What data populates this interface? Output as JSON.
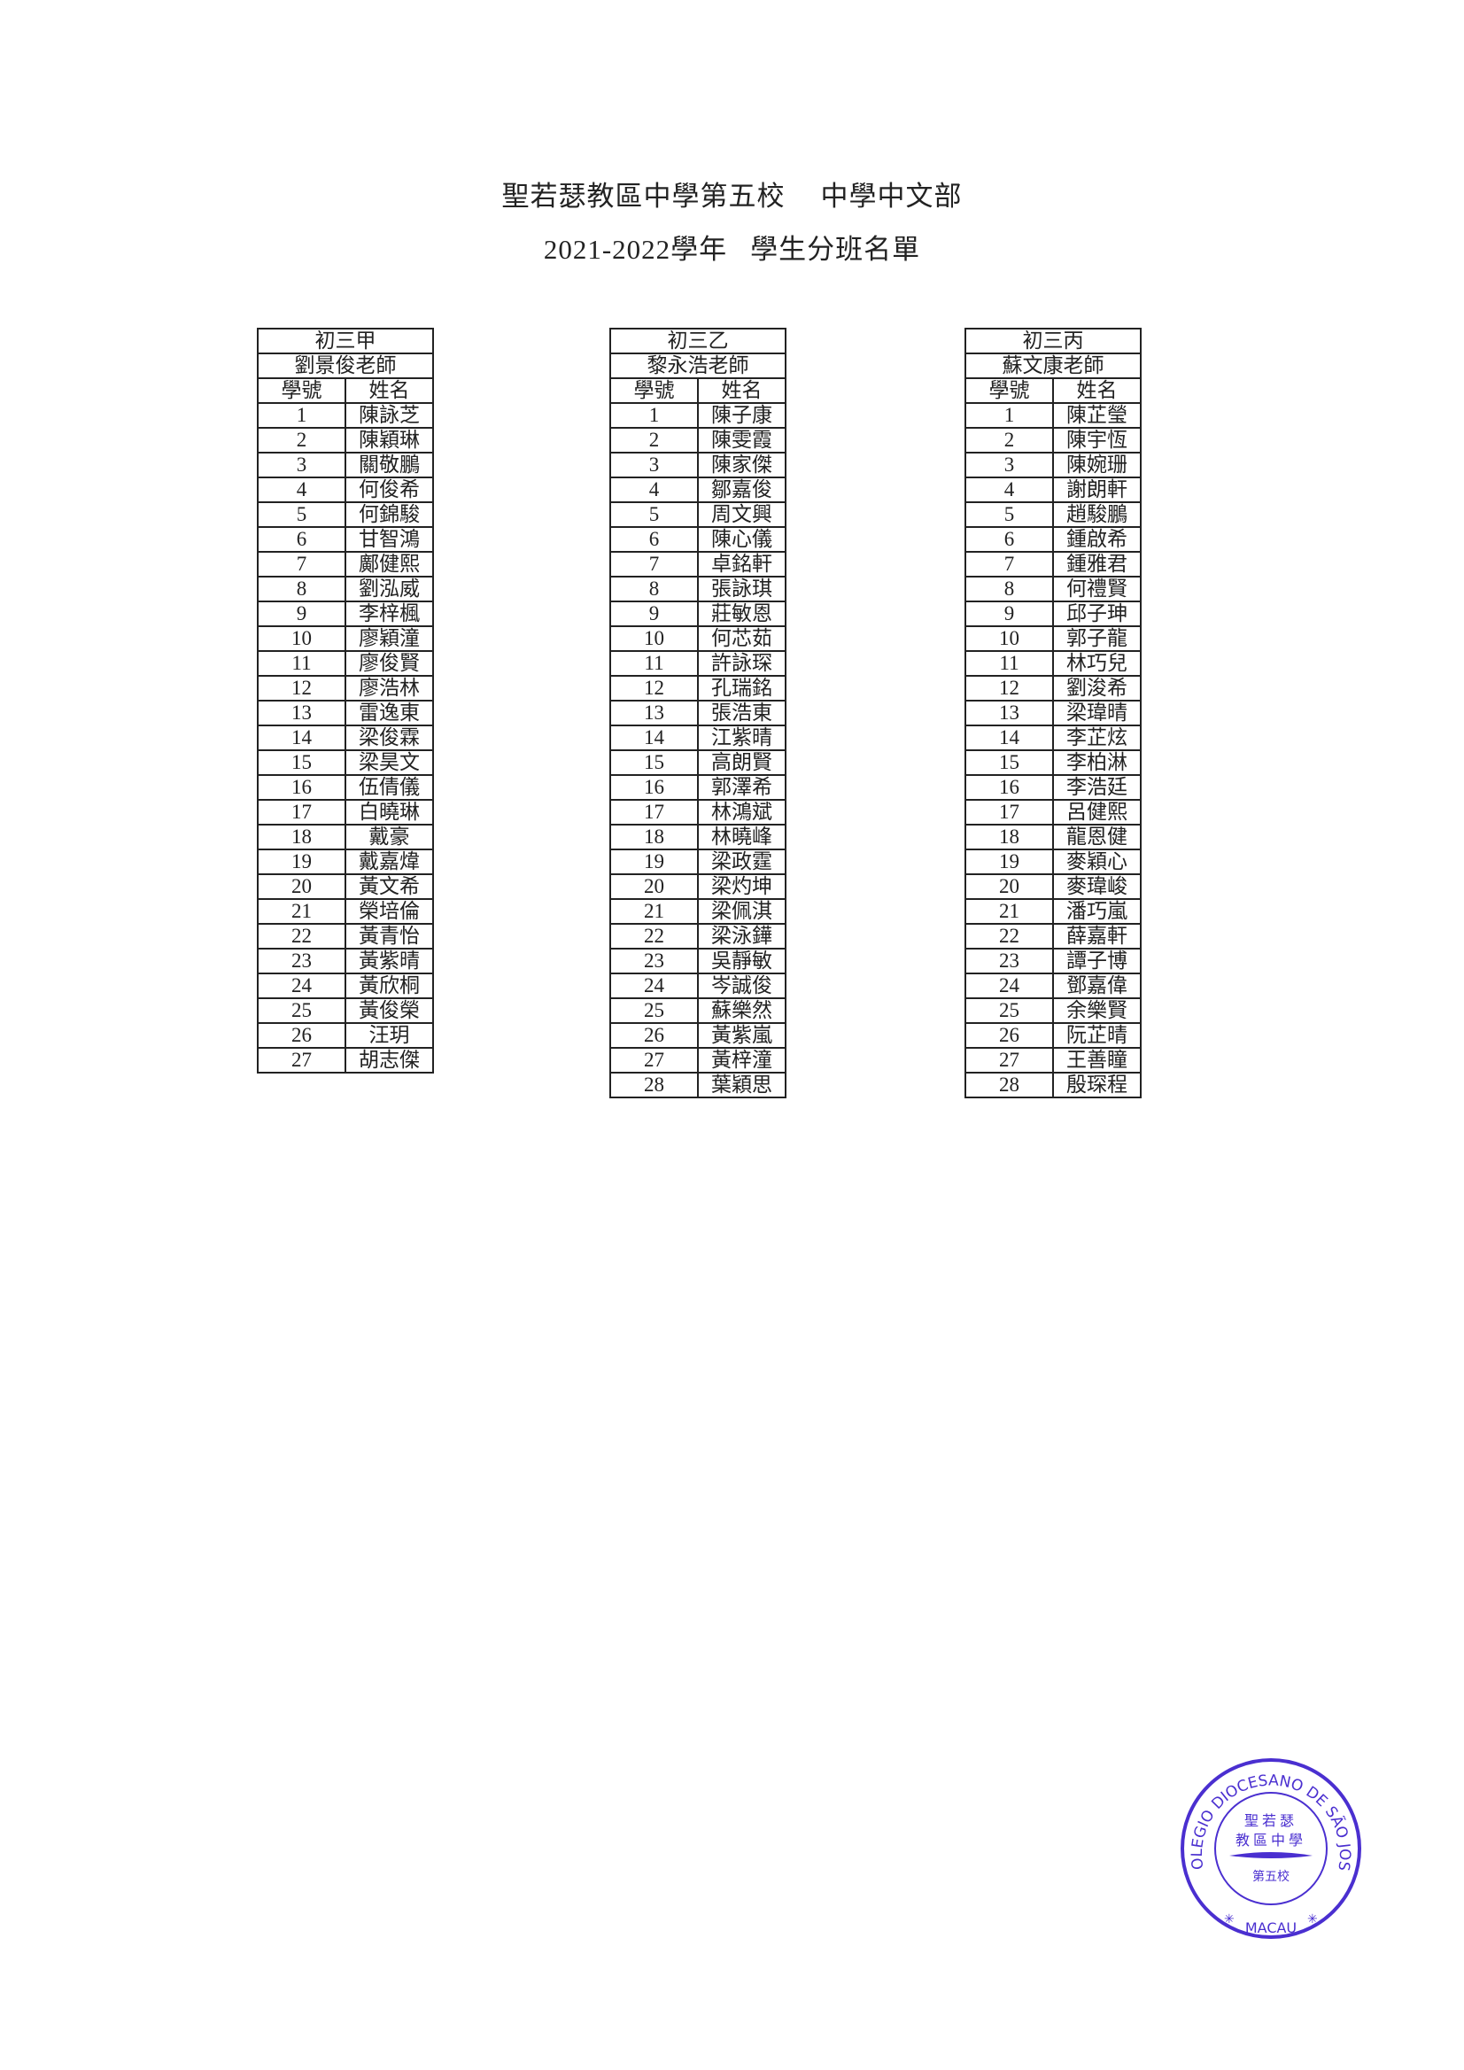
{
  "header": {
    "school": "聖若瑟教區中學第五校",
    "division": "中學中文部",
    "year": "2021-2022學年",
    "doc_title": "學生分班名單"
  },
  "column_headers": {
    "number": "學號",
    "name": "姓名"
  },
  "classes": [
    {
      "class_name": "初三甲",
      "teacher": "劉景俊老師",
      "students": [
        "陳詠芝",
        "陳穎琳",
        "關敬鵬",
        "何俊希",
        "何錦駿",
        "甘智鴻",
        "鄺健熙",
        "劉泓威",
        "李梓楓",
        "廖穎潼",
        "廖俊賢",
        "廖浩林",
        "雷逸東",
        "梁俊霖",
        "梁昊文",
        "伍倩儀",
        "白曉琳",
        "戴豪",
        "戴嘉煒",
        "黃文希",
        "榮培倫",
        "黃青怡",
        "黃紫晴",
        "黃欣桐",
        "黃俊榮",
        "汪玥",
        "胡志傑"
      ]
    },
    {
      "class_name": "初三乙",
      "teacher": "黎永浩老師",
      "students": [
        "陳子康",
        "陳雯霞",
        "陳家傑",
        "鄒嘉俊",
        "周文興",
        "陳心儀",
        "卓銘軒",
        "張詠琪",
        "莊敏恩",
        "何芯茹",
        "許詠琛",
        "孔瑞銘",
        "張浩東",
        "江紫晴",
        "高朗賢",
        "郭澤希",
        "林鴻斌",
        "林曉峰",
        "梁政霆",
        "梁灼坤",
        "梁佩淇",
        "梁泳鏵",
        "吳靜敏",
        "岑誠俊",
        "蘇樂然",
        "黃紫嵐",
        "黃梓潼",
        "葉穎思"
      ]
    },
    {
      "class_name": "初三丙",
      "teacher": "蘇文康老師",
      "students": [
        "陳芷瑩",
        "陳宇恆",
        "陳婉珊",
        "謝朗軒",
        "趙駿鵬",
        "鍾啟希",
        "鍾雅君",
        "何禮賢",
        "邱子珅",
        "郭子龍",
        "林巧兒",
        "劉浚希",
        "梁瑋晴",
        "李芷炫",
        "李柏淋",
        "李浩廷",
        "呂健熙",
        "龍恩健",
        "麥穎心",
        "麥瑋峻",
        "潘巧嵐",
        "薛嘉軒",
        "譚子博",
        "鄧嘉偉",
        "余樂賢",
        "阮芷晴",
        "王善瞳",
        "殷琛程"
      ]
    }
  ],
  "stamp": {
    "outer_text": "COLEGIO DIOCESANO DE SÃO JOSÉ",
    "bottom_text": "MACAU",
    "inner_line1": "聖若瑟",
    "inner_line2": "教區中學",
    "inner_line3": "第五校",
    "color": "#4a2fd0"
  }
}
